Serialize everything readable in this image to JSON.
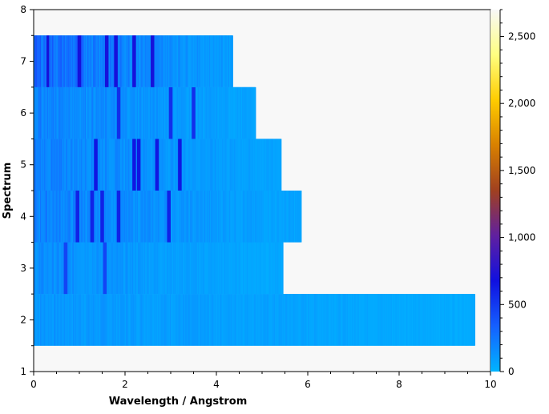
{
  "chart_data": {
    "type": "heatmap",
    "title": "",
    "xlabel": "Wavelength / Angstrom",
    "ylabel": "Spectrum",
    "xlim": [
      0,
      10
    ],
    "ylim": [
      1,
      8
    ],
    "x_ticks": [
      "0",
      "2",
      "4",
      "6",
      "8",
      "10"
    ],
    "y_ticks": [
      "1",
      "2",
      "3",
      "4",
      "5",
      "6",
      "7",
      "8"
    ],
    "colorbar": {
      "range": [
        0,
        2700
      ],
      "ticks": [
        "0",
        "500",
        "1,000",
        "1,500",
        "2,000",
        "2,500"
      ],
      "tick_values": [
        0,
        500,
        1000,
        1500,
        2000,
        2500
      ],
      "colors": [
        "#00b4ff",
        "#1560ff",
        "#1010e0",
        "#6020a0",
        "#a04020",
        "#d88000",
        "#ffcc00",
        "#ffff80",
        "#f8f8f8"
      ]
    },
    "background_color": "#f8f8f8",
    "spectra": [
      {
        "spectrum": 2,
        "x_min": 0.0,
        "x_max": 9.65,
        "base_value": 120,
        "peak_value": 300,
        "peaks": []
      },
      {
        "spectrum": 3,
        "x_min": 0.0,
        "x_max": 5.45,
        "base_value": 150,
        "peak_value": 450,
        "peaks": [
          0.7,
          1.55
        ]
      },
      {
        "spectrum": 4,
        "x_min": 0.0,
        "x_max": 5.85,
        "base_value": 200,
        "peak_value": 600,
        "peaks": [
          0.95,
          1.28,
          1.5,
          1.85,
          2.95
        ]
      },
      {
        "spectrum": 5,
        "x_min": 0.0,
        "x_max": 5.4,
        "base_value": 200,
        "peak_value": 650,
        "peaks": [
          1.35,
          2.2,
          2.3,
          2.7,
          3.2
        ]
      },
      {
        "spectrum": 6,
        "x_min": 0.0,
        "x_max": 4.85,
        "base_value": 200,
        "peak_value": 550,
        "peaks": [
          1.85,
          3.0,
          3.5
        ]
      },
      {
        "spectrum": 7,
        "x_min": 0.0,
        "x_max": 4.35,
        "base_value": 300,
        "peak_value": 700,
        "peaks": [
          0.3,
          1.0,
          1.6,
          1.8,
          2.2,
          2.6
        ]
      }
    ]
  }
}
